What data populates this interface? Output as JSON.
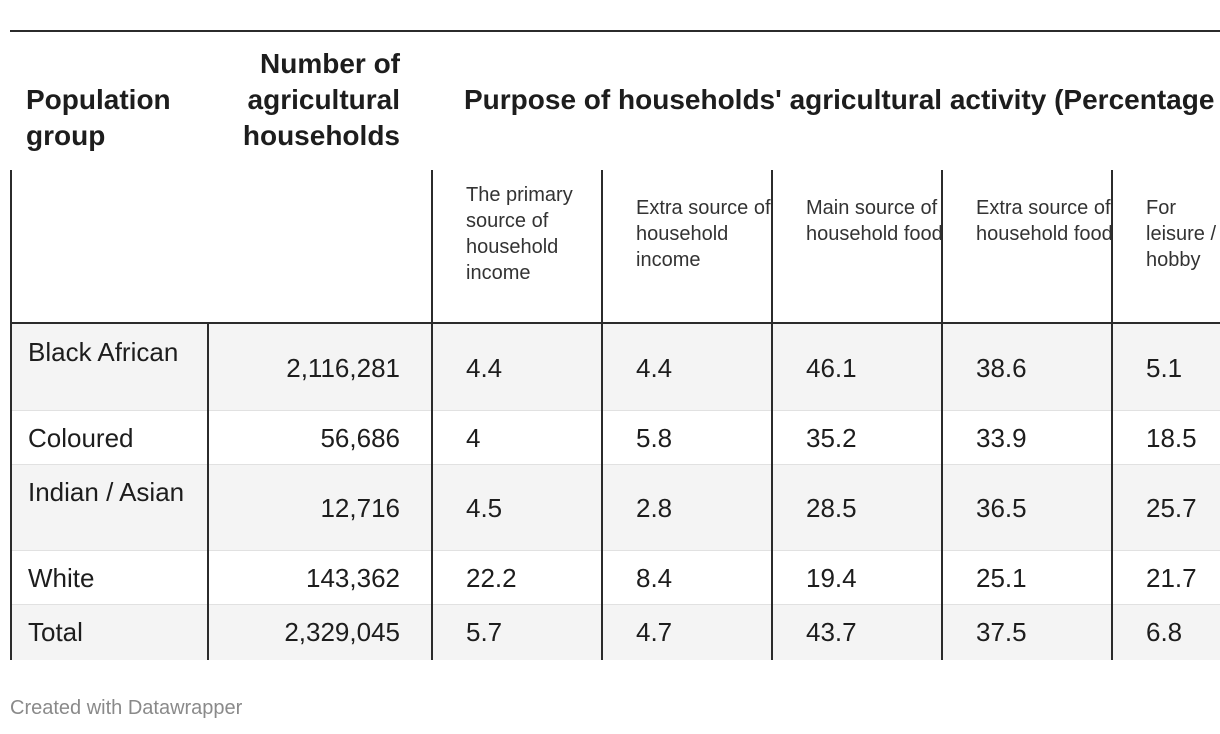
{
  "table": {
    "headers": {
      "population_group": "Population group",
      "num_households": "Number of agricultural households",
      "purpose_group": "Purpose of households' agricultural activity (Percentage of households)"
    },
    "subheaders": [
      "The primary source of household income",
      "Extra source of household income",
      "Main source of household food",
      "Extra source of household food",
      "For leisure / hobby"
    ],
    "rows": [
      {
        "group": "Black African",
        "households": "2,116,281",
        "values": [
          "4.4",
          "4.4",
          "46.1",
          "38.6",
          "5.1"
        ]
      },
      {
        "group": "Coloured",
        "households": "56,686",
        "values": [
          "4",
          "5.8",
          "35.2",
          "33.9",
          "18.5"
        ]
      },
      {
        "group": "Indian / Asian",
        "households": "12,716",
        "values": [
          "4.5",
          "2.8",
          "28.5",
          "36.5",
          "25.7"
        ]
      },
      {
        "group": "White",
        "households": "143,362",
        "values": [
          "22.2",
          "8.4",
          "19.4",
          "25.1",
          "21.7"
        ]
      },
      {
        "group": "Total",
        "households": "2,329,045",
        "values": [
          "5.7",
          "4.7",
          "43.7",
          "37.5",
          "6.8"
        ]
      }
    ]
  },
  "footer": {
    "credit": "Created with Datawrapper"
  }
}
